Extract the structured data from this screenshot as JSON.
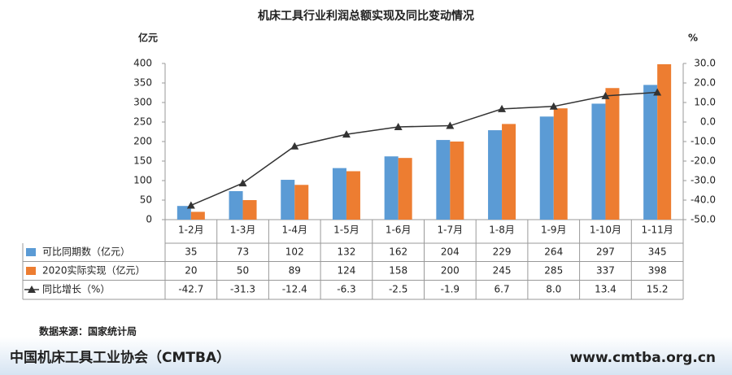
{
  "chart_data": {
    "type": "bar-line-table",
    "title": "机床工具行业利润总额实现及同比变动情况",
    "y_label": "亿元",
    "y2_label": "%",
    "categories": [
      "1-2月",
      "1-3月",
      "1-4月",
      "1-5月",
      "1-6月",
      "1-7月",
      "1-8月",
      "1-9月",
      "1-10月",
      "1-11月"
    ],
    "series": [
      {
        "name": "可比同期数（亿元）",
        "color": "#5b9bd5",
        "type": "bar",
        "values": [
          35,
          73,
          102,
          132,
          162,
          204,
          229,
          264,
          297,
          345
        ]
      },
      {
        "name": "2020实际实现（亿元）",
        "color": "#ed7d31",
        "type": "bar",
        "values": [
          20,
          50,
          89,
          124,
          158,
          200,
          245,
          285,
          337,
          398
        ]
      },
      {
        "name": "同比增长（%）",
        "color": "#333333",
        "type": "line",
        "axis": "y2",
        "values": [
          -42.7,
          -31.3,
          -12.4,
          -6.3,
          -2.5,
          -1.9,
          6.7,
          8.0,
          13.4,
          15.2
        ],
        "value_labels": [
          "-42.7",
          "-31.3",
          "-12.4",
          "-6.3",
          "-2.5",
          "-1.9",
          "6.7",
          "8.0",
          "13.4",
          "15.2"
        ]
      }
    ],
    "ylim": [
      0,
      400
    ],
    "yticks": [
      0,
      50,
      100,
      150,
      200,
      250,
      300,
      350,
      400
    ],
    "y2lim": [
      -50,
      30
    ],
    "y2ticks": [
      {
        "value": -50,
        "label": "-50.0"
      },
      {
        "value": -40,
        "label": "-40.0"
      },
      {
        "value": -30,
        "label": "-30.0"
      },
      {
        "value": -20,
        "label": "-20.0"
      },
      {
        "value": -10,
        "label": "-10.0"
      },
      {
        "value": 0,
        "label": "0.0"
      },
      {
        "value": 10,
        "label": "10.0"
      },
      {
        "value": 20,
        "label": "20.0"
      },
      {
        "value": 30,
        "label": "30.0"
      }
    ],
    "source": "数据来源：国家统计局"
  },
  "footer": {
    "org": "中国机床工具工业协会（CMTBA）",
    "url": "www.cmtba.org.cn"
  }
}
